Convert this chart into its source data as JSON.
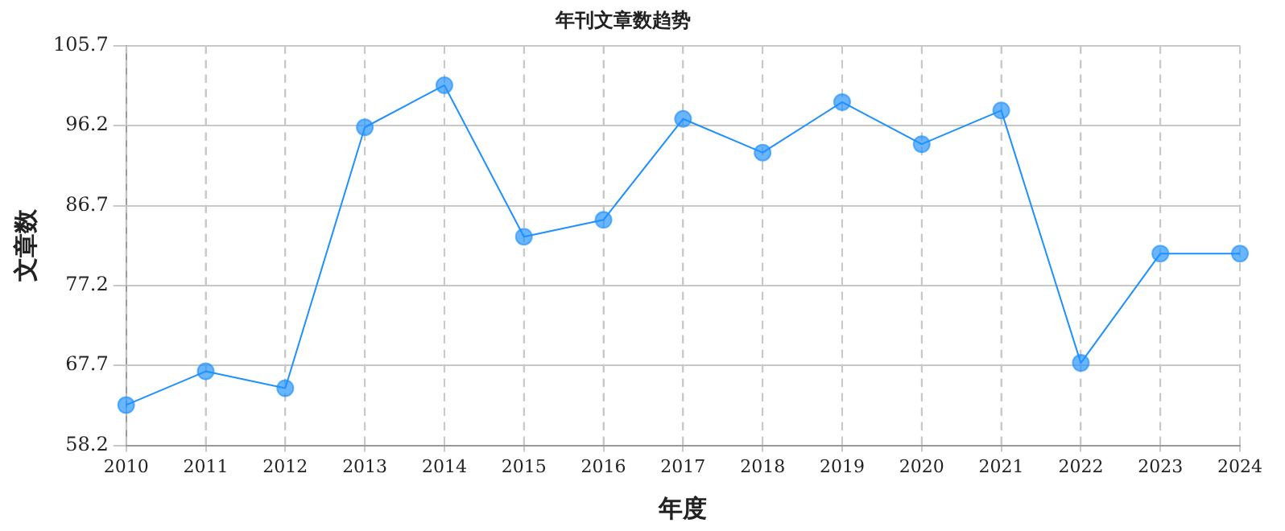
{
  "chart_data": {
    "type": "line",
    "title": "年刊文章数趋势",
    "xlabel": "年度",
    "ylabel": "文章数",
    "categories": [
      "2010",
      "2011",
      "2012",
      "2013",
      "2014",
      "2015",
      "2016",
      "2017",
      "2018",
      "2019",
      "2020",
      "2021",
      "2022",
      "2023",
      "2024"
    ],
    "series": [
      {
        "color": "#1e90ff",
        "values": [
          63,
          67,
          65,
          96,
          101,
          83,
          85,
          97,
          93,
          99,
          94,
          98,
          68,
          81,
          81
        ]
      }
    ],
    "ylim": [
      58.2,
      105.7
    ],
    "yticks": [
      58.2,
      67.7,
      77.2,
      86.7,
      96.2,
      105.7
    ],
    "grid": true,
    "marker": "circle",
    "line_style": "solid",
    "legend": false
  }
}
